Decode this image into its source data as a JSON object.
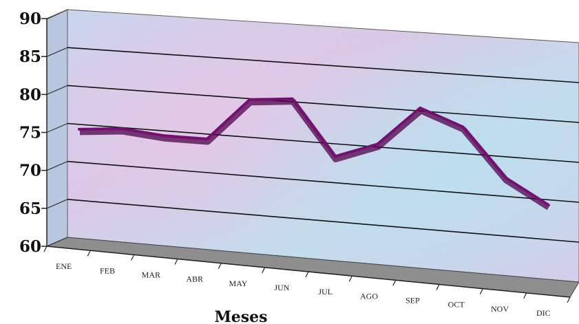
{
  "chart_data": {
    "type": "line",
    "style": "3d",
    "title": "",
    "xlabel": "Meses",
    "ylabel": "",
    "ylim": [
      60,
      90
    ],
    "yticks": [
      60,
      65,
      70,
      75,
      80,
      85,
      90
    ],
    "categories": [
      "ENE",
      "FEB",
      "MAR",
      "ABR",
      "MAY",
      "JUN",
      "JUL",
      "AGO",
      "SEP",
      "OCT",
      "NOV",
      "DIC"
    ],
    "series": [
      {
        "values": [
          75,
          75.5,
          75,
          75,
          80.5,
          81,
          74,
          76,
          81,
          79,
          73,
          70
        ]
      }
    ],
    "grid": true,
    "legend": "none",
    "colors": {
      "line": "#7a0d74",
      "wall": "#c9d4ea",
      "floor": "#8c8c8c",
      "gridline": "#111111"
    }
  }
}
